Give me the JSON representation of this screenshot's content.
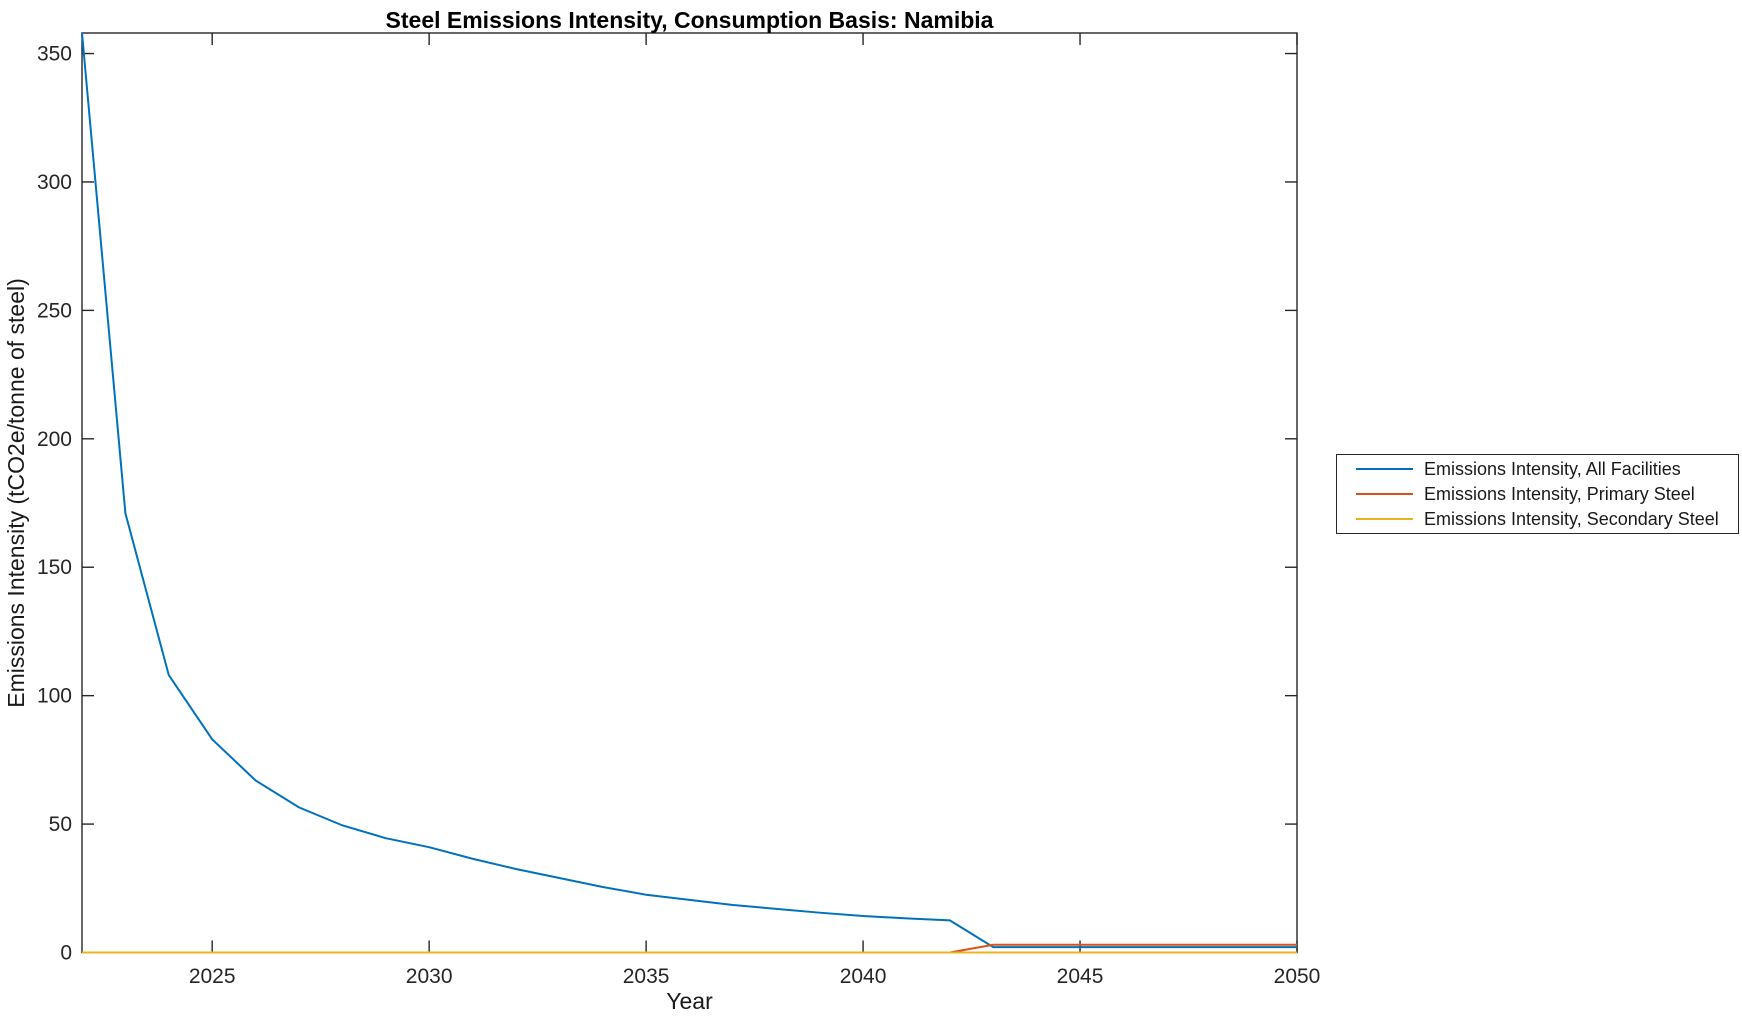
{
  "figure": {
    "background_color": "#ffffff"
  },
  "chart_data": {
    "type": "line",
    "title": "Steel Emissions Intensity, Consumption Basis: Namibia",
    "xlabel": "Year",
    "ylabel": "Emissions Intensity (tCO2e/tonne of steel)",
    "xlim": [
      2022,
      2050
    ],
    "ylim": [
      0,
      358
    ],
    "xticks": [
      2025,
      2030,
      2035,
      2040,
      2045,
      2050
    ],
    "yticks": [
      0,
      50,
      100,
      150,
      200,
      250,
      300,
      350
    ],
    "grid": false,
    "axis_color": "#262626",
    "legend": {
      "position": "right-outside",
      "border_color": "#262626"
    },
    "x": [
      2022,
      2023,
      2024,
      2025,
      2026,
      2027,
      2028,
      2029,
      2030,
      2031,
      2032,
      2033,
      2034,
      2035,
      2036,
      2037,
      2038,
      2039,
      2040,
      2041,
      2042,
      2043,
      2044,
      2045,
      2046,
      2047,
      2048,
      2049,
      2050
    ],
    "series": [
      {
        "name": "Emissions Intensity, All Facilities",
        "color": "#0072BD",
        "values": [
          358,
          171,
          108,
          83,
          67,
          56.5,
          49.5,
          44.5,
          41,
          36.5,
          32.5,
          29,
          25.5,
          22.5,
          20.5,
          18.5,
          17,
          15.5,
          14.2,
          13.3,
          12.5,
          2.1,
          2.1,
          2.1,
          2.1,
          2.1,
          2.1,
          2.1,
          2.1
        ]
      },
      {
        "name": "Emissions Intensity, Primary Steel",
        "color": "#D95319",
        "values": [
          0,
          0,
          0,
          0,
          0,
          0,
          0,
          0,
          0,
          0,
          0,
          0,
          0,
          0,
          0,
          0,
          0,
          0,
          0,
          0,
          0,
          3.0,
          3.0,
          3.0,
          3.0,
          3.0,
          3.0,
          3.0,
          3.0
        ]
      },
      {
        "name": "Emissions Intensity, Secondary Steel",
        "color": "#EDB120",
        "values": [
          0,
          0,
          0,
          0,
          0,
          0,
          0,
          0,
          0,
          0,
          0,
          0,
          0,
          0,
          0,
          0,
          0,
          0,
          0,
          0,
          0,
          0,
          0,
          0,
          0,
          0,
          0,
          0,
          0
        ]
      }
    ]
  }
}
